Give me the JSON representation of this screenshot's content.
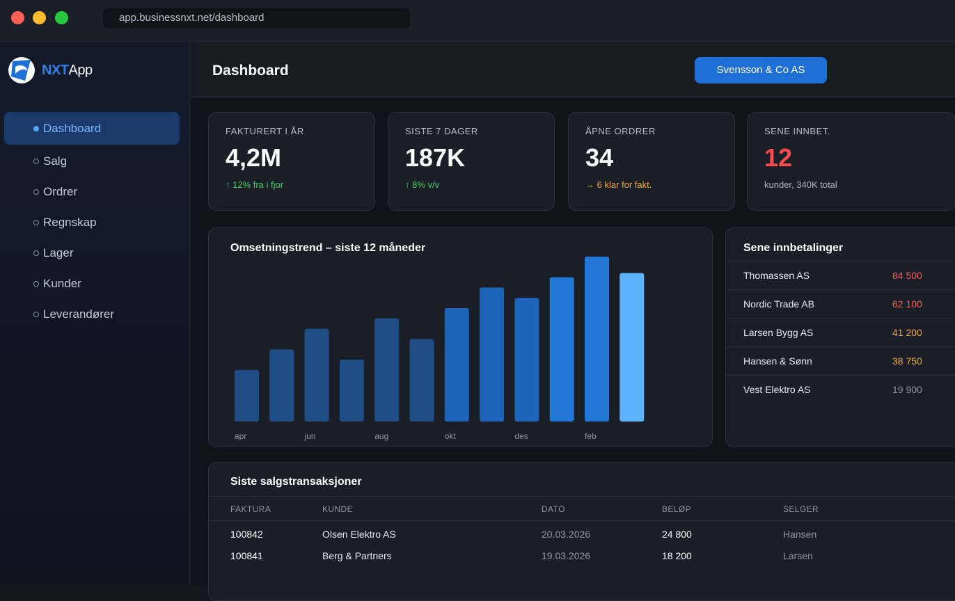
{
  "browser": {
    "url": "app.businessnxt.net/dashboard"
  },
  "logo": {
    "nxt": "NXT",
    "app": "App"
  },
  "sidebar": {
    "items": [
      {
        "label": "Dashboard",
        "active": true
      },
      {
        "label": "Salg",
        "active": false
      },
      {
        "label": "Ordrer",
        "active": false
      },
      {
        "label": "Regnskap",
        "active": false
      },
      {
        "label": "Lager",
        "active": false
      },
      {
        "label": "Kunder",
        "active": false
      },
      {
        "label": "Leverandører",
        "active": false
      }
    ]
  },
  "header": {
    "title": "Dashboard",
    "company_button": "Svensson & Co AS"
  },
  "kpis": [
    {
      "label": "FAKTURERT I ÅR",
      "value": "4,2M",
      "sub": "↑ 12% fra i fjor",
      "sub_color": "#3fd16a",
      "value_color": "#ffffff"
    },
    {
      "label": "SISTE 7 DAGER",
      "value": "187K",
      "sub": "↑ 8% v/v",
      "sub_color": "#3fd16a",
      "value_color": "#ffffff"
    },
    {
      "label": "ÅPNE ORDRER",
      "value": "34",
      "sub": "→ 6 klar for fakt.",
      "sub_color": "#f2a93b",
      "value_color": "#ffffff"
    },
    {
      "label": "SENE INNBET.",
      "value": "12",
      "sub": "kunder, 340K total",
      "sub_color": "#aeb5c0",
      "value_color": "#ff4d4f"
    }
  ],
  "chart_data": {
    "type": "bar",
    "title": "Omsetningstrend – siste 12 måneder",
    "tick_labels": [
      "apr",
      "",
      "jun",
      "",
      "aug",
      "",
      "okt",
      "",
      "des",
      "",
      "feb",
      ""
    ],
    "values": [
      25,
      35,
      45,
      30,
      50,
      40,
      55,
      65,
      60,
      70,
      80,
      72
    ],
    "ylim": [
      0,
      85
    ],
    "highlight_last": true,
    "colors": {
      "base": "#1f4e86",
      "mid": "#1d63b8",
      "strong": "#2277d6",
      "highlight": "#5cb3ff"
    }
  },
  "payments": {
    "title": "Sene innbetalinger",
    "rows": [
      {
        "name": "Thomassen AS",
        "amount": "84 500",
        "color": "#ff5a5a"
      },
      {
        "name": "Nordic Trade AB",
        "amount": "62 100",
        "color": "#ff5a5a"
      },
      {
        "name": "Larsen Bygg AS",
        "amount": "41 200",
        "color": "#f2a93b"
      },
      {
        "name": "Hansen & Sønn",
        "amount": "38 750",
        "color": "#f2a93b"
      },
      {
        "name": "Vest Elektro AS",
        "amount": "19 900",
        "color": "#8f97a4"
      }
    ]
  },
  "transactions": {
    "title": "Siste salgstransaksjoner",
    "columns": [
      "FAKTURA",
      "KUNDE",
      "DATO",
      "BELØP",
      "SELGER"
    ],
    "rows": [
      {
        "faktura": "100842",
        "kunde": "Olsen Elektro AS",
        "dato": "20.03.2026",
        "belop": "24 800",
        "selger": "Hansen"
      },
      {
        "faktura": "100841",
        "kunde": "Berg & Partners",
        "dato": "19.03.2026",
        "belop": "18 200",
        "selger": "Larsen"
      }
    ]
  }
}
